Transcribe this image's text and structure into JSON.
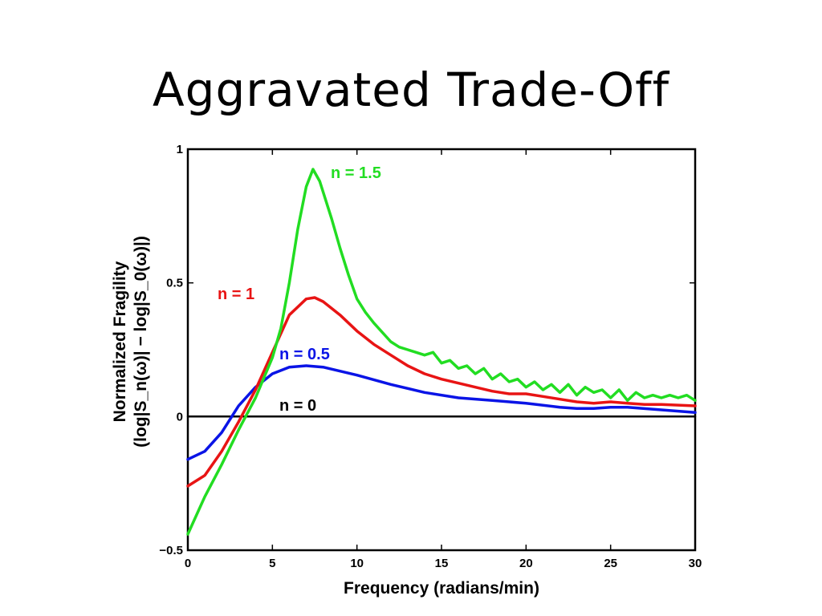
{
  "slide": {
    "title": "Aggravated Trade-Off"
  },
  "chart_data": {
    "type": "line",
    "title": "",
    "xlabel": "Frequency (radians/min)",
    "ylabel_line1": "Normalized Fragility",
    "ylabel_line2": "(log|S_n(ω)| − log|S_0(ω)|)",
    "xlim": [
      0,
      30
    ],
    "ylim": [
      -0.5,
      1
    ],
    "xticks": [
      0,
      5,
      10,
      15,
      20,
      25,
      30
    ],
    "yticks": [
      -0.5,
      0,
      0.5,
      1
    ],
    "ytick_labels": [
      "−0.5",
      "0",
      "0.5",
      "1"
    ],
    "grid": false,
    "series": [
      {
        "name": "n = 0",
        "color": "#000000",
        "x": [
          0,
          30
        ],
        "y": [
          0,
          0
        ]
      },
      {
        "name": "n = 0.5",
        "color": "#0a14e6",
        "x": [
          0,
          1,
          2,
          3,
          4,
          5,
          6,
          7,
          8,
          9,
          10,
          12,
          14,
          16,
          18,
          20,
          22,
          23,
          24,
          25,
          26,
          28,
          30
        ],
        "y": [
          -0.16,
          -0.13,
          -0.06,
          0.04,
          0.11,
          0.16,
          0.185,
          0.19,
          0.185,
          0.17,
          0.155,
          0.12,
          0.09,
          0.07,
          0.06,
          0.05,
          0.035,
          0.03,
          0.03,
          0.035,
          0.035,
          0.025,
          0.015
        ]
      },
      {
        "name": "n = 1",
        "color": "#e81414",
        "x": [
          0,
          1,
          2,
          3,
          4,
          5,
          6,
          7,
          7.5,
          8,
          9,
          10,
          11,
          12,
          13,
          14,
          15,
          16,
          17,
          18,
          19,
          20,
          21,
          22,
          23,
          24,
          25,
          26,
          27,
          28,
          30
        ],
        "y": [
          -0.26,
          -0.22,
          -0.13,
          -0.02,
          0.1,
          0.24,
          0.38,
          0.44,
          0.445,
          0.43,
          0.38,
          0.32,
          0.27,
          0.23,
          0.19,
          0.16,
          0.14,
          0.125,
          0.11,
          0.095,
          0.085,
          0.085,
          0.075,
          0.065,
          0.055,
          0.05,
          0.055,
          0.05,
          0.045,
          0.045,
          0.04
        ]
      },
      {
        "name": "n = 1.5",
        "color": "#22dd22",
        "x": [
          0,
          1,
          2,
          3,
          4,
          5,
          5.5,
          6,
          6.5,
          7,
          7.4,
          7.8,
          8.5,
          9,
          9.5,
          10,
          10.5,
          11,
          12,
          12.5,
          13,
          13.5,
          14,
          14.5,
          15,
          15.5,
          16,
          16.5,
          17,
          17.5,
          18,
          18.5,
          19,
          19.5,
          20,
          20.5,
          21,
          21.5,
          22,
          22.5,
          23,
          23.5,
          24,
          24.5,
          25,
          25.5,
          26,
          26.5,
          27,
          27.5,
          28,
          28.5,
          29,
          29.5,
          30
        ],
        "y": [
          -0.44,
          -0.3,
          -0.18,
          -0.05,
          0.07,
          0.22,
          0.33,
          0.5,
          0.7,
          0.86,
          0.925,
          0.88,
          0.74,
          0.63,
          0.53,
          0.44,
          0.39,
          0.35,
          0.28,
          0.26,
          0.25,
          0.24,
          0.23,
          0.24,
          0.2,
          0.21,
          0.18,
          0.19,
          0.16,
          0.18,
          0.14,
          0.16,
          0.13,
          0.14,
          0.11,
          0.13,
          0.1,
          0.12,
          0.09,
          0.12,
          0.08,
          0.11,
          0.09,
          0.1,
          0.07,
          0.1,
          0.06,
          0.09,
          0.07,
          0.08,
          0.07,
          0.08,
          0.07,
          0.08,
          0.06
        ]
      }
    ]
  }
}
